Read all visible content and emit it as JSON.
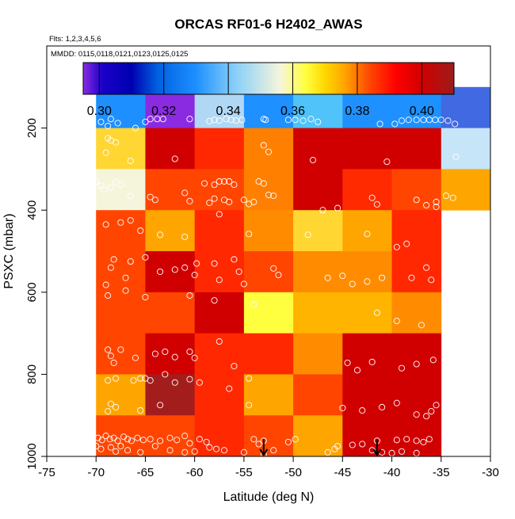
{
  "chart_data": {
    "type": "heatmap",
    "title": "ORCAS RF01-6 H2402_AWAS",
    "subtitle_flights": "Flts: 1,2,3,4,5,6",
    "subtitle_dates": "MMDD: 0115,0118,0121,0123,0125,0125",
    "xlabel": "Latitude (deg N)",
    "ylabel": "PSXC (mbar)",
    "xlim": [
      -75,
      -30
    ],
    "ylim": [
      1000,
      0
    ],
    "xticks": [
      -75,
      -70,
      -65,
      -60,
      -55,
      -50,
      -45,
      -40,
      -35,
      -30
    ],
    "yticks": [
      200,
      400,
      600,
      800,
      1000
    ],
    "colorbar": {
      "range": [
        0.295,
        0.41
      ],
      "ticks": [
        0.3,
        0.32,
        0.34,
        0.36,
        0.38,
        0.4
      ],
      "tick_labels": [
        "0.30",
        "0.32",
        "0.34",
        "0.36",
        "0.38",
        "0.40"
      ],
      "stops": [
        {
          "v": 0.295,
          "c": "#8a2be2"
        },
        {
          "v": 0.301,
          "c": "#1a00c8"
        },
        {
          "v": 0.31,
          "c": "#0000b0"
        },
        {
          "v": 0.318,
          "c": "#0060e0"
        },
        {
          "v": 0.33,
          "c": "#1e90ff"
        },
        {
          "v": 0.342,
          "c": "#87cefa"
        },
        {
          "v": 0.356,
          "c": "#f5f5dc"
        },
        {
          "v": 0.364,
          "c": "#ffff40"
        },
        {
          "v": 0.37,
          "c": "#ffd700"
        },
        {
          "v": 0.376,
          "c": "#ffa500"
        },
        {
          "v": 0.384,
          "c": "#ff4500"
        },
        {
          "v": 0.392,
          "c": "#ff0000"
        },
        {
          "v": 0.4,
          "c": "#d10000"
        },
        {
          "v": 0.41,
          "c": "#9b1c1c"
        }
      ]
    },
    "lat_bins": [
      -70,
      -65,
      -60,
      -55,
      -50,
      -45,
      -40,
      -35,
      -30
    ],
    "p_bins": [
      100,
      200,
      300,
      400,
      500,
      600,
      700,
      800,
      900,
      1000
    ],
    "cell_colors": [
      [
        "#1e8fff",
        "#8a2be2",
        "#b0d8f5",
        "#1e90ff",
        "#4fc3fa",
        "#1e90ff",
        "#1e90ff",
        "#4169e1"
      ],
      [
        "#ffd632",
        "#d10000",
        "#ff2800",
        "#ff7f00",
        "#d10000",
        "#d10000",
        "#d10000",
        "#c6e5f8"
      ],
      [
        "#f5f5dc",
        "#ff4500",
        "#ff4500",
        "#ff7f00",
        "#d10000",
        "#ff2a00",
        "#ff4500",
        "#ffa500"
      ],
      [
        "#ff4500",
        "#ffa500",
        "#ff2800",
        "#ff8c00",
        "#ffd632",
        "#ffa500",
        "#ff2800",
        null
      ],
      [
        "#ff4500",
        "#d10000",
        "#ff2800",
        "#ff4500",
        "#ff8c00",
        "#ff8c00",
        "#ff2800",
        null
      ],
      [
        "#ff4500",
        "#ff4500",
        "#d10000",
        "#ffff40",
        "#ffb400",
        "#ffb400",
        "#ff8c00",
        null
      ],
      [
        "#ff4500",
        "#d10000",
        "#ff2800",
        "#ff2800",
        "#ff8c00",
        "#d10000",
        "#d10000",
        null
      ],
      [
        "#ffa500",
        "#a31d1d",
        "#ff2800",
        "#ffa500",
        "#ff4500",
        "#d10000",
        "#d10000",
        null
      ],
      [
        "#ff4500",
        "#ff4500",
        "#ff2800",
        "#ff4500",
        "#ffa500",
        "#d10000",
        "#d10000",
        null
      ]
    ],
    "samples": [
      [
        -70.5,
        190
      ],
      [
        -69.5,
        185
      ],
      [
        -68.8,
        195
      ],
      [
        -68.5,
        178
      ],
      [
        -67.8,
        188
      ],
      [
        -66,
        200
      ],
      [
        -65,
        185
      ],
      [
        -64.5,
        178
      ],
      [
        -63.8,
        178
      ],
      [
        -63.2,
        178
      ],
      [
        -60.5,
        178
      ],
      [
        -58.5,
        183
      ],
      [
        -58,
        180
      ],
      [
        -57.5,
        182
      ],
      [
        -56.8,
        178
      ],
      [
        -56.3,
        180
      ],
      [
        -55.8,
        182
      ],
      [
        -55.2,
        180
      ],
      [
        -53,
        178
      ],
      [
        -52.8,
        180
      ],
      [
        -50.5,
        180
      ],
      [
        -49.8,
        180
      ],
      [
        -49,
        182
      ],
      [
        -48.2,
        178
      ],
      [
        -47.5,
        185
      ],
      [
        -41.2,
        190
      ],
      [
        -39.7,
        190
      ],
      [
        -39,
        182
      ],
      [
        -38.3,
        180
      ],
      [
        -37.5,
        180
      ],
      [
        -36.8,
        180
      ],
      [
        -36.2,
        180
      ],
      [
        -35.6,
        180
      ],
      [
        -35,
        180
      ],
      [
        -34.3,
        182
      ],
      [
        -33.6,
        190
      ],
      [
        -68.8,
        225
      ],
      [
        -68.5,
        230
      ],
      [
        -68,
        235
      ],
      [
        -69,
        260
      ],
      [
        -66.5,
        280
      ],
      [
        -62,
        275
      ],
      [
        -53,
        242
      ],
      [
        -52.5,
        258
      ],
      [
        -48,
        278
      ],
      [
        -40.5,
        282
      ],
      [
        -33.5,
        270
      ],
      [
        -70,
        330
      ],
      [
        -69.5,
        340
      ],
      [
        -69.2,
        350
      ],
      [
        -68.5,
        345
      ],
      [
        -68,
        332
      ],
      [
        -67.5,
        338
      ],
      [
        -66.5,
        365
      ],
      [
        -64.5,
        368
      ],
      [
        -64,
        375
      ],
      [
        -61,
        358
      ],
      [
        -60.5,
        378
      ],
      [
        -59,
        335
      ],
      [
        -58,
        338
      ],
      [
        -57.5,
        330
      ],
      [
        -57,
        330
      ],
      [
        -56.5,
        330
      ],
      [
        -56,
        338
      ],
      [
        -53.5,
        330
      ],
      [
        -53,
        335
      ],
      [
        -52.5,
        363
      ],
      [
        -52,
        365
      ],
      [
        -58.5,
        382
      ],
      [
        -58,
        372
      ],
      [
        -57,
        375
      ],
      [
        -56.5,
        380
      ],
      [
        -55,
        375
      ],
      [
        -54,
        380
      ],
      [
        -47,
        400
      ],
      [
        -45.5,
        395
      ],
      [
        -42,
        370
      ],
      [
        -41.5,
        386
      ],
      [
        -37.5,
        375
      ],
      [
        -36.5,
        388
      ],
      [
        -35.5,
        380
      ],
      [
        -34.5,
        365
      ],
      [
        -33.8,
        370
      ],
      [
        -35.5,
        392
      ],
      [
        -57.5,
        410
      ],
      [
        -54.5,
        385
      ],
      [
        -67.5,
        430
      ],
      [
        -66.5,
        425
      ],
      [
        -69,
        435
      ],
      [
        -65.5,
        450
      ],
      [
        -63.5,
        460
      ],
      [
        -61,
        465
      ],
      [
        -54.5,
        458
      ],
      [
        -48.5,
        460
      ],
      [
        -42.5,
        458
      ],
      [
        -38.5,
        482
      ],
      [
        -39.5,
        490
      ],
      [
        -66.5,
        525
      ],
      [
        -68.2,
        520
      ],
      [
        -68.5,
        540
      ],
      [
        -67,
        565
      ],
      [
        -65,
        515
      ],
      [
        -63.5,
        550
      ],
      [
        -62,
        545
      ],
      [
        -61,
        540
      ],
      [
        -60,
        558
      ],
      [
        -59.8,
        530
      ],
      [
        -58,
        530
      ],
      [
        -57.5,
        570
      ],
      [
        -56,
        520
      ],
      [
        -55.5,
        550
      ],
      [
        -55,
        580
      ],
      [
        -52,
        542
      ],
      [
        -51.5,
        558
      ],
      [
        -46.5,
        565
      ],
      [
        -45,
        560
      ],
      [
        -44,
        580
      ],
      [
        -42.5,
        574
      ],
      [
        -41,
        565
      ],
      [
        -38,
        565
      ],
      [
        -36,
        570
      ],
      [
        -36.5,
        540
      ],
      [
        -69,
        582
      ],
      [
        -68.8,
        608
      ],
      [
        -67,
        596
      ],
      [
        -65,
        612
      ],
      [
        -60.5,
        608
      ],
      [
        -58,
        620
      ],
      [
        -54,
        630
      ],
      [
        -41.5,
        650
      ],
      [
        -39.5,
        670
      ],
      [
        -37,
        680
      ],
      [
        -68.8,
        740
      ],
      [
        -68.5,
        755
      ],
      [
        -68.2,
        772
      ],
      [
        -67.5,
        740
      ],
      [
        -66,
        760
      ],
      [
        -65.5,
        810
      ],
      [
        -65,
        810
      ],
      [
        -64,
        750
      ],
      [
        -63,
        745
      ],
      [
        -62,
        758
      ],
      [
        -60.5,
        745
      ],
      [
        -60,
        760
      ],
      [
        -57.5,
        720
      ],
      [
        -56,
        780
      ],
      [
        -44.5,
        772
      ],
      [
        -43.5,
        790
      ],
      [
        -42,
        770
      ],
      [
        -39,
        785
      ],
      [
        -37.5,
        775
      ],
      [
        -35.8,
        765
      ],
      [
        -68.8,
        815
      ],
      [
        -68,
        810
      ],
      [
        -66.2,
        815
      ],
      [
        -64.5,
        815
      ],
      [
        -63,
        800
      ],
      [
        -62,
        820
      ],
      [
        -60.5,
        812
      ],
      [
        -59.5,
        820
      ],
      [
        -56.5,
        835
      ],
      [
        -54.5,
        810
      ],
      [
        -68.5,
        872
      ],
      [
        -68,
        880
      ],
      [
        -68.8,
        890
      ],
      [
        -65.5,
        888
      ],
      [
        -63.5,
        875
      ],
      [
        -54.5,
        875
      ],
      [
        -45,
        882
      ],
      [
        -43,
        888
      ],
      [
        -41,
        880
      ],
      [
        -39.5,
        870
      ],
      [
        -37.5,
        898
      ],
      [
        -36.5,
        902
      ],
      [
        -36,
        890
      ],
      [
        -35.5,
        875
      ],
      [
        -69.8,
        955
      ],
      [
        -69.4,
        960
      ],
      [
        -69,
        950
      ],
      [
        -68.6,
        958
      ],
      [
        -68.2,
        955
      ],
      [
        -67.8,
        962
      ],
      [
        -67.2,
        952
      ],
      [
        -66.8,
        958
      ],
      [
        -66.4,
        962
      ],
      [
        -65.8,
        955
      ],
      [
        -65.2,
        960
      ],
      [
        -64.5,
        958
      ],
      [
        -63.5,
        962
      ],
      [
        -62.5,
        955
      ],
      [
        -61.8,
        960
      ],
      [
        -61,
        950
      ],
      [
        -60.5,
        968
      ],
      [
        -59.5,
        958
      ],
      [
        -58.8,
        965
      ],
      [
        -54,
        958
      ],
      [
        -53.5,
        970
      ],
      [
        -53,
        962
      ],
      [
        -50.5,
        965
      ],
      [
        -49.8,
        958
      ],
      [
        -45.5,
        975
      ],
      [
        -44,
        972
      ],
      [
        -43,
        970
      ],
      [
        -41.5,
        962
      ],
      [
        -39.5,
        960
      ],
      [
        -38.5,
        958
      ],
      [
        -37.5,
        962
      ],
      [
        -36.8,
        965
      ],
      [
        -36.2,
        958
      ],
      [
        -70,
        975
      ],
      [
        -69.5,
        982
      ],
      [
        -68.5,
        978
      ],
      [
        -68,
        988
      ],
      [
        -67.5,
        975
      ],
      [
        -66.8,
        985
      ],
      [
        -65.5,
        990
      ],
      [
        -64,
        975
      ],
      [
        -62.5,
        985
      ],
      [
        -61,
        990
      ],
      [
        -60,
        988
      ],
      [
        -58.5,
        978
      ],
      [
        -57.8,
        982
      ],
      [
        -57,
        985
      ],
      [
        -55,
        990
      ],
      [
        -53,
        995
      ],
      [
        -52,
        985
      ],
      [
        -46.5,
        990
      ],
      [
        -45.8,
        982
      ],
      [
        -42,
        985
      ],
      [
        -41,
        990
      ],
      [
        -40,
        992
      ],
      [
        -39,
        988
      ],
      [
        -37.5,
        992
      ]
    ],
    "markers": [
      {
        "symbol": "arrow-down",
        "lat": -53,
        "p": 958
      },
      {
        "symbol": "arrow-down",
        "lat": -41.5,
        "p": 958
      }
    ]
  }
}
